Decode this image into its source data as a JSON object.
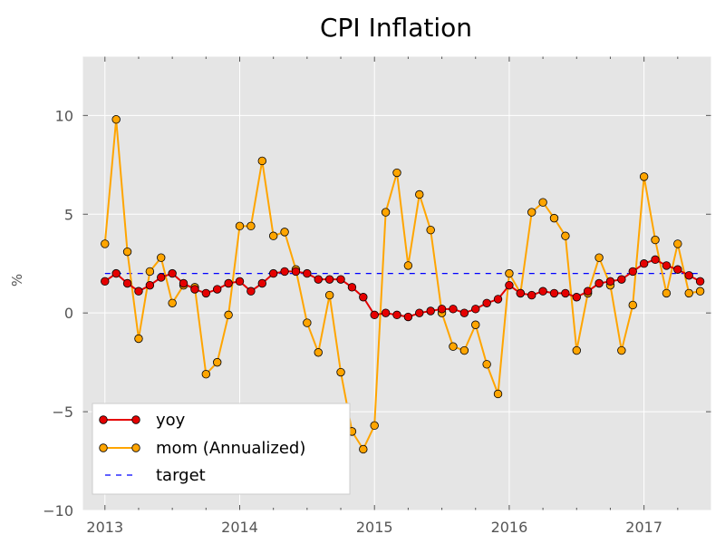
{
  "chart_data": {
    "type": "line",
    "title": "CPI Inflation",
    "xlabel": "",
    "ylabel": "%",
    "x_start": "2013-01",
    "x_ticks": [
      "2013",
      "2014",
      "2015",
      "2016",
      "2017"
    ],
    "y_ticks": [
      "10",
      "5",
      "0",
      "−5",
      "−10"
    ],
    "ylim": [
      -10,
      13
    ],
    "xlim": [
      "2012-11",
      "2017-07"
    ],
    "grid": true,
    "legend_position": "lower-left",
    "series": [
      {
        "name": "yoy",
        "color": "#e50000",
        "marker": "circle",
        "line_style": "solid",
        "values": [
          1.6,
          2.0,
          1.5,
          1.1,
          1.4,
          1.8,
          2.0,
          1.5,
          1.2,
          1.0,
          1.2,
          1.5,
          1.6,
          1.1,
          1.5,
          2.0,
          2.1,
          2.1,
          2.0,
          1.7,
          1.7,
          1.7,
          1.3,
          0.8,
          -0.1,
          0.0,
          -0.1,
          -0.2,
          0.0,
          0.1,
          0.2,
          0.2,
          0.0,
          0.2,
          0.5,
          0.7,
          1.4,
          1.0,
          0.9,
          1.1,
          1.0,
          1.0,
          0.8,
          1.1,
          1.5,
          1.6,
          1.7,
          2.1,
          2.5,
          2.7,
          2.4,
          2.2,
          1.9,
          1.6
        ]
      },
      {
        "name": "mom (Annualized)",
        "color": "#ffa500",
        "marker": "circle",
        "line_style": "solid",
        "values": [
          3.5,
          9.8,
          3.1,
          -1.3,
          2.1,
          2.8,
          0.5,
          1.4,
          1.3,
          -3.1,
          -2.5,
          -0.1,
          4.4,
          4.4,
          7.7,
          3.9,
          4.1,
          2.2,
          -0.5,
          -2.0,
          0.9,
          -3.0,
          -6.0,
          -6.9,
          -5.7,
          5.1,
          7.1,
          2.4,
          6.0,
          4.2,
          0.0,
          -1.7,
          -1.9,
          -0.6,
          -2.6,
          -4.1,
          2.0,
          1.0,
          5.1,
          5.6,
          4.8,
          3.9,
          -1.9,
          1.0,
          2.8,
          1.4,
          -1.9,
          0.4,
          6.9,
          3.7,
          1.0,
          3.5,
          1.0,
          1.1
        ]
      },
      {
        "name": "target",
        "color": "#0000ff",
        "marker": "none",
        "line_style": "dashed",
        "values": [
          2.0
        ]
      }
    ]
  }
}
